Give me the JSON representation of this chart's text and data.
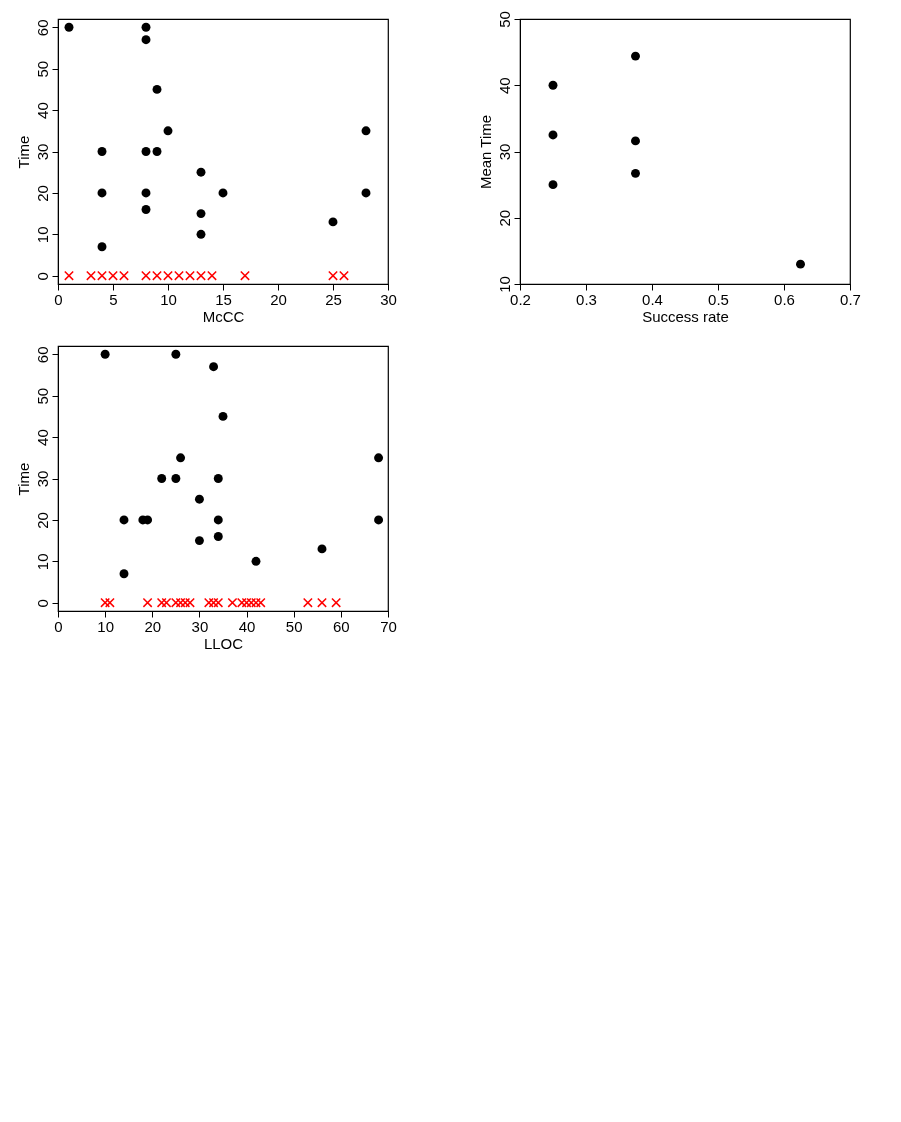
{
  "chart_data": [
    {
      "type": "scatter",
      "xlabel": "McCC",
      "ylabel": "Time",
      "xlim": [
        0,
        30
      ],
      "xticks": [
        0,
        5,
        10,
        15,
        20,
        25,
        30
      ],
      "ylim": [
        -2,
        62
      ],
      "yticks": [
        0,
        10,
        20,
        30,
        40,
        50,
        60
      ],
      "grid": false,
      "series": [
        {
          "color": "#000000",
          "marker": "circle",
          "x": [
            1,
            8,
            8,
            9,
            10,
            28,
            4,
            8,
            9,
            13,
            4,
            8,
            15,
            28,
            8,
            13,
            25,
            13,
            4
          ],
          "values": [
            60,
            60,
            57,
            45,
            35,
            35,
            30,
            30,
            30,
            25,
            20,
            20,
            20,
            20,
            16,
            15,
            13,
            10,
            7
          ]
        },
        {
          "color": "#ff0000",
          "marker": "cross",
          "x": [
            1,
            3,
            4,
            5,
            6,
            8,
            9,
            10,
            11,
            12,
            13,
            14,
            17,
            25,
            26
          ],
          "values": [
            0,
            0,
            0,
            0,
            0,
            0,
            0,
            0,
            0,
            0,
            0,
            0,
            0,
            0,
            0
          ]
        }
      ]
    },
    {
      "type": "scatter",
      "xlabel": "Success rate",
      "ylabel": "Mean Time",
      "xlim": [
        0.2,
        0.7
      ],
      "xticks": [
        0.2,
        0.3,
        0.4,
        0.5,
        0.6,
        0.7
      ],
      "ylim": [
        10,
        50
      ],
      "yticks": [
        10,
        20,
        30,
        40,
        50
      ],
      "grid": false,
      "series": [
        {
          "color": "#000000",
          "marker": "circle",
          "x": [
            0.25,
            0.25,
            0.25,
            0.375,
            0.375,
            0.375,
            0.625
          ],
          "values": [
            40,
            32.5,
            25,
            44.4,
            31.6,
            26.7,
            13
          ]
        }
      ]
    },
    {
      "type": "scatter",
      "xlabel": "LLOC",
      "ylabel": "Time",
      "xlim": [
        0,
        70
      ],
      "xticks": [
        0,
        10,
        20,
        30,
        40,
        50,
        60,
        70
      ],
      "ylim": [
        -2,
        62
      ],
      "yticks": [
        0,
        10,
        20,
        30,
        40,
        50,
        60
      ],
      "grid": false,
      "series": [
        {
          "color": "#000000",
          "marker": "circle",
          "x": [
            10,
            25,
            33,
            35,
            26,
            68,
            22,
            25,
            34,
            30,
            14,
            18,
            19,
            34,
            68,
            34,
            30,
            56,
            42,
            14
          ],
          "values": [
            60,
            60,
            57,
            45,
            35,
            35,
            30,
            30,
            30,
            25,
            20,
            20,
            20,
            20,
            20,
            16,
            15,
            13,
            10,
            7
          ]
        },
        {
          "color": "#ff0000",
          "marker": "cross",
          "x": [
            10,
            11,
            19,
            22,
            23,
            25,
            26,
            27,
            28,
            32,
            33,
            34,
            37,
            39,
            40,
            41,
            42,
            43,
            53,
            56,
            59
          ],
          "values": [
            0,
            0,
            0,
            0,
            0,
            0,
            0,
            0,
            0,
            0,
            0,
            0,
            0,
            0,
            0,
            0,
            0,
            0,
            0,
            0,
            0
          ]
        }
      ]
    }
  ]
}
